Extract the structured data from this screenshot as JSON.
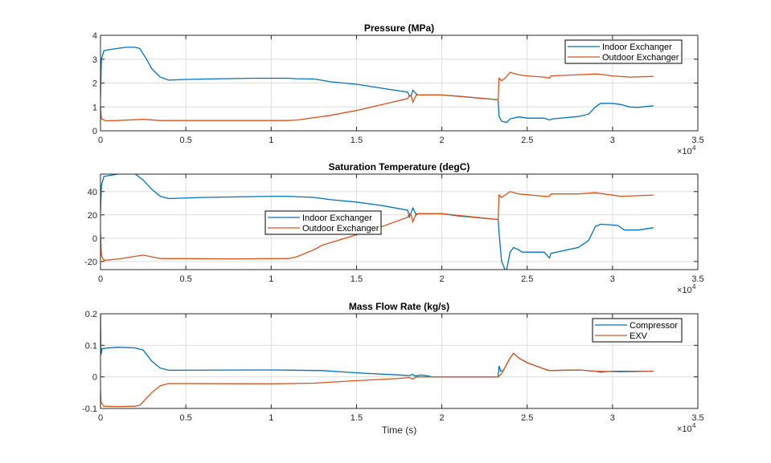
{
  "colors": {
    "series1": "#0072BD",
    "series2": "#D95319",
    "grid": "#dedede",
    "axis": "#262626"
  },
  "chart_data": [
    {
      "type": "line",
      "title": "Pressure (MPa)",
      "xlabel": "",
      "ylabel": "",
      "xlim": [
        0,
        35000
      ],
      "ylim": [
        0,
        4
      ],
      "xticks": [
        0,
        5000,
        10000,
        15000,
        20000,
        25000,
        30000,
        35000
      ],
      "xtick_labels": [
        "0",
        "0.5",
        "1",
        "1.5",
        "2",
        "2.5",
        "3",
        "3.5"
      ],
      "yticks": [
        0,
        1,
        2,
        3,
        4
      ],
      "ytick_labels": [
        "0",
        "1",
        "2",
        "3",
        "4"
      ],
      "x_exponent_label": "×10",
      "x_exponent": "4",
      "grid": true,
      "legend": "top-right",
      "series": [
        {
          "name": "Indoor Exchanger",
          "x": [
            0,
            50,
            200,
            500,
            1000,
            1500,
            2000,
            2300,
            2700,
            3000,
            3500,
            4000,
            5000,
            7000,
            9000,
            11000,
            11500,
            12500,
            13500,
            15000,
            16500,
            18000,
            18100,
            18200,
            18300,
            18500,
            18600,
            20000,
            21000,
            23300,
            23350,
            23500,
            23800,
            24000,
            24500,
            25000,
            26000,
            26300,
            26500,
            28000,
            28600,
            29000,
            29300,
            30000,
            30500,
            31000,
            31500,
            32400
          ],
          "y": [
            1.4,
            3.0,
            3.35,
            3.4,
            3.45,
            3.5,
            3.5,
            3.45,
            3.0,
            2.6,
            2.25,
            2.12,
            2.15,
            2.18,
            2.2,
            2.2,
            2.18,
            2.17,
            2.05,
            1.95,
            1.78,
            1.62,
            1.45,
            1.45,
            1.7,
            1.55,
            1.5,
            1.5,
            1.45,
            1.3,
            0.6,
            0.4,
            0.35,
            0.5,
            0.58,
            0.53,
            0.53,
            0.45,
            0.5,
            0.6,
            0.7,
            1.0,
            1.15,
            1.15,
            1.1,
            1.0,
            0.98,
            1.05
          ]
        },
        {
          "name": "Outdoor Exchanger",
          "x": [
            0,
            50,
            300,
            1000,
            2500,
            3500,
            8000,
            11000,
            11500,
            12500,
            13500,
            15000,
            16500,
            18000,
            18100,
            18200,
            18300,
            18500,
            20000,
            23300,
            23350,
            23500,
            23700,
            24000,
            24500,
            25000,
            26000,
            26300,
            26400,
            28000,
            29000,
            29500,
            30000,
            31000,
            32400
          ],
          "y": [
            1.0,
            0.5,
            0.42,
            0.43,
            0.48,
            0.43,
            0.43,
            0.43,
            0.45,
            0.55,
            0.65,
            0.85,
            1.1,
            1.35,
            1.48,
            1.48,
            1.2,
            1.5,
            1.5,
            1.3,
            2.2,
            2.1,
            2.2,
            2.45,
            2.35,
            2.3,
            2.25,
            2.2,
            2.3,
            2.35,
            2.38,
            2.35,
            2.3,
            2.25,
            2.28
          ]
        }
      ]
    },
    {
      "type": "line",
      "title": "Saturation Temperature (degC)",
      "xlabel": "",
      "ylabel": "",
      "xlim": [
        0,
        35000
      ],
      "ylim": [
        -27,
        55
      ],
      "xticks": [
        0,
        5000,
        10000,
        15000,
        20000,
        25000,
        30000,
        35000
      ],
      "xtick_labels": [
        "0",
        "0.5",
        "1",
        "1.5",
        "2",
        "2.5",
        "3",
        "3.5"
      ],
      "yticks": [
        -20,
        0,
        20,
        40
      ],
      "ytick_labels": [
        "-20",
        "0",
        "20",
        "40"
      ],
      "x_exponent_label": "×10",
      "x_exponent": "4",
      "grid": true,
      "legend": "center",
      "series": [
        {
          "name": "Indoor Exchanger",
          "x": [
            0,
            50,
            200,
            1000,
            2000,
            2500,
            3000,
            3500,
            4000,
            6000,
            10000,
            11000,
            12500,
            13500,
            15000,
            16500,
            18000,
            18100,
            18300,
            18500,
            18600,
            20000,
            21000,
            23300,
            23350,
            23500,
            23700,
            23800,
            24000,
            24200,
            24500,
            24700,
            26000,
            26300,
            26400,
            28000,
            28600,
            29000,
            29300,
            30300,
            30700,
            31500,
            32400
          ],
          "y": [
            22,
            45,
            53,
            55,
            55.5,
            50,
            42,
            36,
            34,
            35,
            36,
            36,
            35,
            33,
            31,
            28,
            24,
            18,
            26,
            20,
            21,
            21,
            19,
            16,
            5,
            -20,
            -27,
            -27,
            -12,
            -8,
            -10,
            -12,
            -12,
            -17,
            -13,
            -8,
            -2,
            10,
            12,
            11,
            7,
            7,
            9
          ]
        },
        {
          "name": "Outdoor Exchanger",
          "x": [
            0,
            50,
            200,
            1000,
            2500,
            3500,
            8000,
            11000,
            11500,
            12500,
            13000,
            15000,
            16500,
            18000,
            18100,
            18200,
            18300,
            18500,
            20000,
            23300,
            23350,
            23500,
            23700,
            24000,
            24500,
            26000,
            26300,
            26400,
            28000,
            29000,
            29500,
            30500,
            32400
          ],
          "y": [
            5,
            -15,
            -19,
            -18,
            -14.5,
            -17.5,
            -17.8,
            -17.5,
            -16,
            -10,
            -6,
            3,
            10,
            18,
            21,
            20,
            14,
            21,
            21,
            16,
            37,
            35,
            37,
            40,
            38,
            36,
            36,
            38,
            38,
            39,
            38,
            36,
            37
          ]
        }
      ]
    },
    {
      "type": "line",
      "title": "Mass Flow Rate (kg/s)",
      "xlabel": "Time (s)",
      "ylabel": "",
      "xlim": [
        0,
        35000
      ],
      "ylim": [
        -0.1,
        0.2
      ],
      "xticks": [
        0,
        5000,
        10000,
        15000,
        20000,
        25000,
        30000,
        35000
      ],
      "xtick_labels": [
        "0",
        "0.5",
        "1",
        "1.5",
        "2",
        "2.5",
        "3",
        "3.5"
      ],
      "yticks": [
        -0.1,
        0,
        0.1,
        0.2
      ],
      "ytick_labels": [
        "-0.1",
        "0",
        "0.1",
        "0.2"
      ],
      "x_exponent_label": "×10",
      "x_exponent": "4",
      "grid": true,
      "legend": "top-right",
      "series": [
        {
          "name": "Compressor",
          "x": [
            0,
            30,
            100,
            1000,
            2000,
            2500,
            3000,
            3500,
            4000,
            10000,
            13000,
            15000,
            17500,
            18100,
            18300,
            18400,
            18800,
            19300,
            19400,
            23300,
            23350,
            23450,
            23600,
            24000,
            24200,
            24500,
            25000,
            26000,
            26300,
            28000,
            29000,
            29300,
            30000,
            32400
          ],
          "y": [
            0.2,
            0.07,
            0.09,
            0.094,
            0.092,
            0.085,
            0.05,
            0.028,
            0.021,
            0.022,
            0.02,
            0.013,
            0.006,
            0.004,
            0.008,
            0.003,
            0.006,
            0.002,
            0.0,
            0.0,
            0.035,
            0.018,
            0.02,
            0.06,
            0.075,
            0.06,
            0.045,
            0.025,
            0.02,
            0.022,
            0.018,
            0.015,
            0.018,
            0.018
          ]
        },
        {
          "name": "EXV",
          "x": [
            0,
            30,
            200,
            1000,
            2000,
            2300,
            3000,
            3500,
            4000,
            10000,
            12500,
            15000,
            17500,
            18100,
            18300,
            18500,
            23300,
            23500,
            24000,
            24200,
            24500,
            25000,
            26000,
            26300,
            28000,
            29000,
            30500,
            32400
          ],
          "y": [
            -0.04,
            -0.08,
            -0.093,
            -0.094,
            -0.093,
            -0.09,
            -0.05,
            -0.028,
            -0.021,
            -0.022,
            -0.02,
            -0.012,
            -0.005,
            -0.002,
            -0.007,
            0.0,
            0.0,
            0.01,
            0.06,
            0.075,
            0.06,
            0.045,
            0.025,
            0.02,
            0.022,
            0.018,
            0.016,
            0.018
          ]
        }
      ]
    }
  ]
}
